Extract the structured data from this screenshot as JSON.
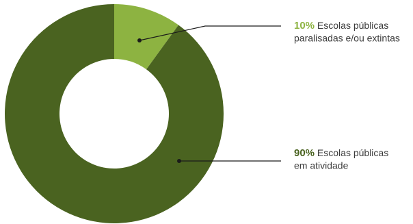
{
  "chart_data": {
    "type": "pie",
    "donut": true,
    "title": "",
    "slices": [
      {
        "value": 10,
        "percent_label": "10%",
        "label_line1": "Escolas públicas",
        "label_line2": "paralisadas e/ou extintas",
        "color": "#8db341",
        "pct_color": "#8db341"
      },
      {
        "value": 90,
        "percent_label": "90%",
        "label_line1": "Escolas públicas",
        "label_line2": "em atividade",
        "color": "#4a6320",
        "pct_color": "#4a6320"
      }
    ],
    "legend": "callouts-right"
  }
}
